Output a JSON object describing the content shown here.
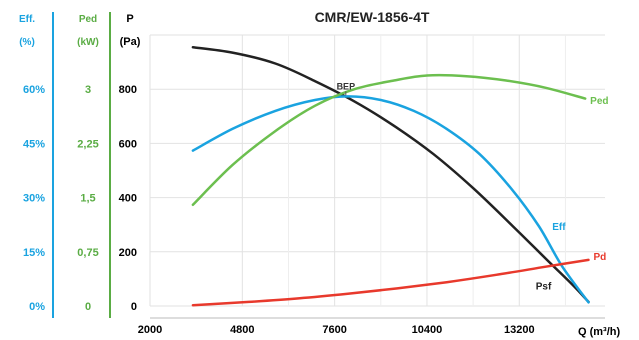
{
  "chart_data": {
    "type": "line",
    "title": "CMR/EW-1856-4T",
    "xlabel": "Q (m³/h)",
    "x_ticks": [
      "2000",
      "4800",
      "7600",
      "10400",
      "13200"
    ],
    "x_tick_values": [
      2000,
      4800,
      7600,
      10400,
      13200
    ],
    "xlim": [
      2000,
      15800
    ],
    "grid": true,
    "axes": {
      "P": {
        "label_line1": "P",
        "label_line2": "(Pa)",
        "ticks": [
          "0",
          "200",
          "400",
          "600",
          "800"
        ],
        "tick_values": [
          0,
          200,
          400,
          600,
          800
        ],
        "ylim": [
          0,
          1000
        ],
        "color": "#000000"
      },
      "Ped": {
        "label_line1": "Ped",
        "label_line2": "(kW)",
        "ticks": [
          "0",
          "0,75",
          "1,5",
          "2,25",
          "3"
        ],
        "tick_values": [
          0,
          0.75,
          1.5,
          2.25,
          3
        ],
        "ylim": [
          0,
          3.75
        ],
        "color": "#5aac44"
      },
      "Eff": {
        "label_line1": "Eff.",
        "label_line2": "(%)",
        "ticks": [
          "0%",
          "15%",
          "30%",
          "45%",
          "60%"
        ],
        "tick_values": [
          0,
          15,
          30,
          45,
          60
        ],
        "ylim": [
          0,
          75
        ],
        "color": "#1aa3e0"
      }
    },
    "series": [
      {
        "name": "Psf",
        "axis": "P",
        "color": "#222222",
        "points": [
          [
            3300,
            955
          ],
          [
            4500,
            935
          ],
          [
            5800,
            895
          ],
          [
            7000,
            830
          ],
          [
            8200,
            755
          ],
          [
            9400,
            665
          ],
          [
            10600,
            560
          ],
          [
            11800,
            435
          ],
          [
            13000,
            295
          ],
          [
            14000,
            175
          ],
          [
            14800,
            80
          ],
          [
            15300,
            15
          ]
        ]
      },
      {
        "name": "Eff",
        "axis": "Eff",
        "color": "#1aa3e0",
        "points": [
          [
            3300,
            43
          ],
          [
            4500,
            49
          ],
          [
            5800,
            54
          ],
          [
            7000,
            57
          ],
          [
            8000,
            58
          ],
          [
            9000,
            57
          ],
          [
            10000,
            54
          ],
          [
            11000,
            49
          ],
          [
            12000,
            42
          ],
          [
            13000,
            32
          ],
          [
            13800,
            22
          ],
          [
            14500,
            11
          ],
          [
            15300,
            1
          ]
        ]
      },
      {
        "name": "Ped",
        "axis": "Ped",
        "color": "#6cbf4f",
        "points": [
          [
            3300,
            1.4
          ],
          [
            4500,
            1.95
          ],
          [
            5800,
            2.42
          ],
          [
            7000,
            2.77
          ],
          [
            8200,
            3.0
          ],
          [
            9400,
            3.12
          ],
          [
            10400,
            3.19
          ],
          [
            11600,
            3.18
          ],
          [
            12800,
            3.12
          ],
          [
            14000,
            3.02
          ],
          [
            15200,
            2.87
          ]
        ]
      },
      {
        "name": "Pd",
        "axis": "P",
        "color": "#e8392c",
        "points": [
          [
            3300,
            3
          ],
          [
            5000,
            15
          ],
          [
            6500,
            28
          ],
          [
            8000,
            45
          ],
          [
            9500,
            65
          ],
          [
            11000,
            88
          ],
          [
            12500,
            115
          ],
          [
            14000,
            145
          ],
          [
            15300,
            170
          ]
        ]
      }
    ],
    "annotations": [
      {
        "text": "BEP",
        "x": 8000,
        "axis": "P",
        "y": 770
      }
    ],
    "series_labels": [
      {
        "name": "Ped",
        "x": 15350,
        "axis": "P",
        "y": 745,
        "anchor": "start"
      },
      {
        "name": "Eff",
        "x": 14200,
        "axis": "P",
        "y": 280,
        "anchor": "start"
      },
      {
        "name": "Pd",
        "x": 15450,
        "axis": "P",
        "y": 170,
        "anchor": "start"
      },
      {
        "name": "Psf",
        "x": 13700,
        "axis": "P",
        "y": 60,
        "anchor": "start"
      }
    ]
  }
}
